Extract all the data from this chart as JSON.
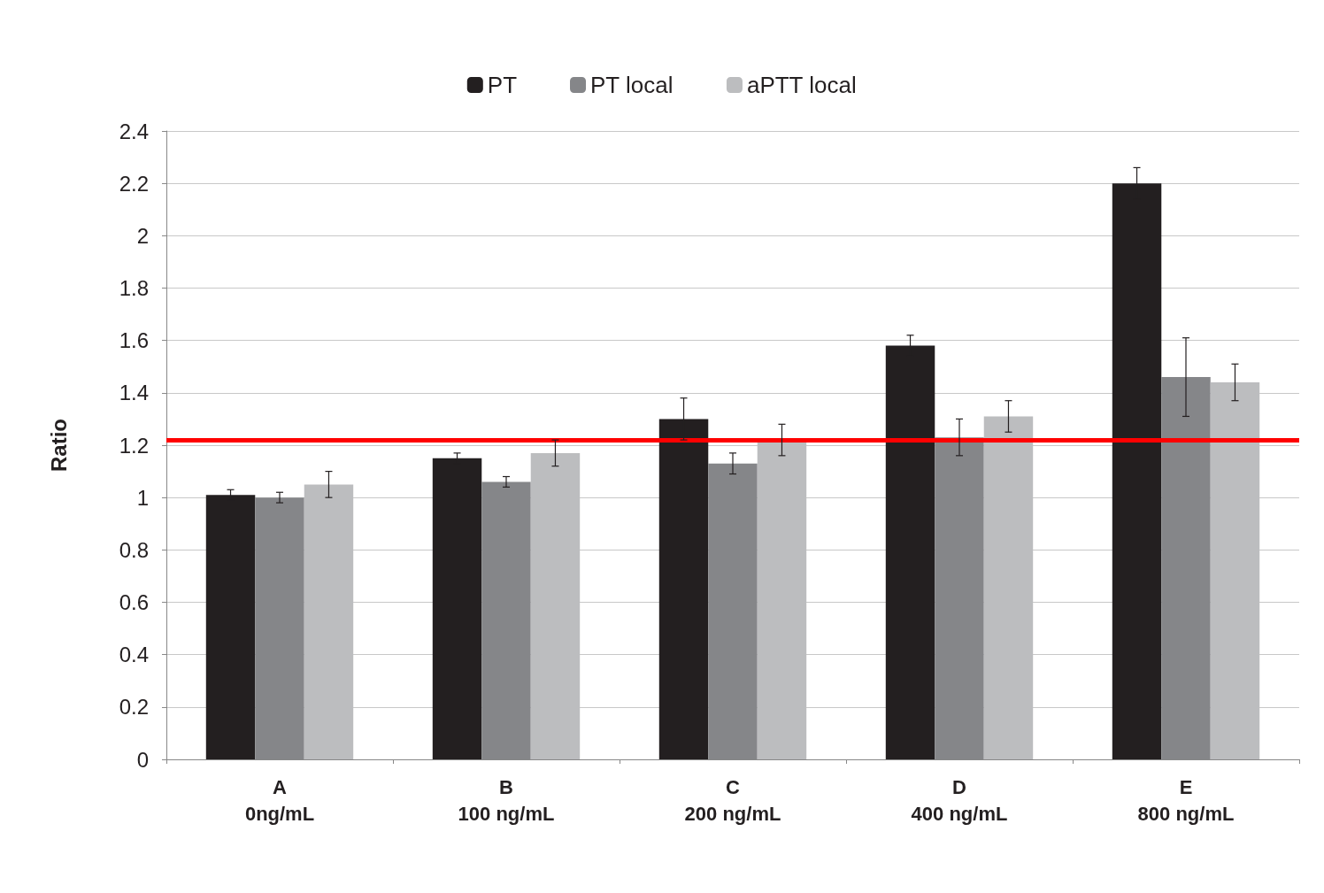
{
  "chart_data": {
    "type": "bar",
    "ylabel": "Ratio",
    "categories": [
      "A\n0ng/mL",
      "B\n100 ng/mL",
      "C\n200 ng/mL",
      "D\n400 ng/mL",
      "E\n800 ng/mL"
    ],
    "series": [
      {
        "name": "PT",
        "color": "#231f20",
        "values": [
          1.01,
          1.15,
          1.3,
          1.58,
          2.2
        ],
        "errors": [
          0.02,
          0.02,
          0.08,
          0.04,
          0.06
        ]
      },
      {
        "name": "PT local",
        "color": "#858689",
        "values": [
          1.0,
          1.06,
          1.13,
          1.23,
          1.46
        ],
        "errors": [
          0.02,
          0.02,
          0.04,
          0.07,
          0.15
        ]
      },
      {
        "name": "aPTT local",
        "color": "#bcbdbf",
        "values": [
          1.05,
          1.17,
          1.22,
          1.31,
          1.44
        ],
        "errors": [
          0.05,
          0.05,
          0.06,
          0.06,
          0.07
        ]
      }
    ],
    "ylim": [
      0,
      2.4
    ],
    "yticks": [
      0,
      0.2,
      0.4,
      0.6,
      0.8,
      1,
      1.2,
      1.4,
      1.6,
      1.8,
      2,
      2.2,
      2.4
    ],
    "ref_lines": [
      {
        "axis": "y",
        "value": 1.22,
        "color": "#ff0000"
      }
    ],
    "grid": "y",
    "legend": "top"
  }
}
